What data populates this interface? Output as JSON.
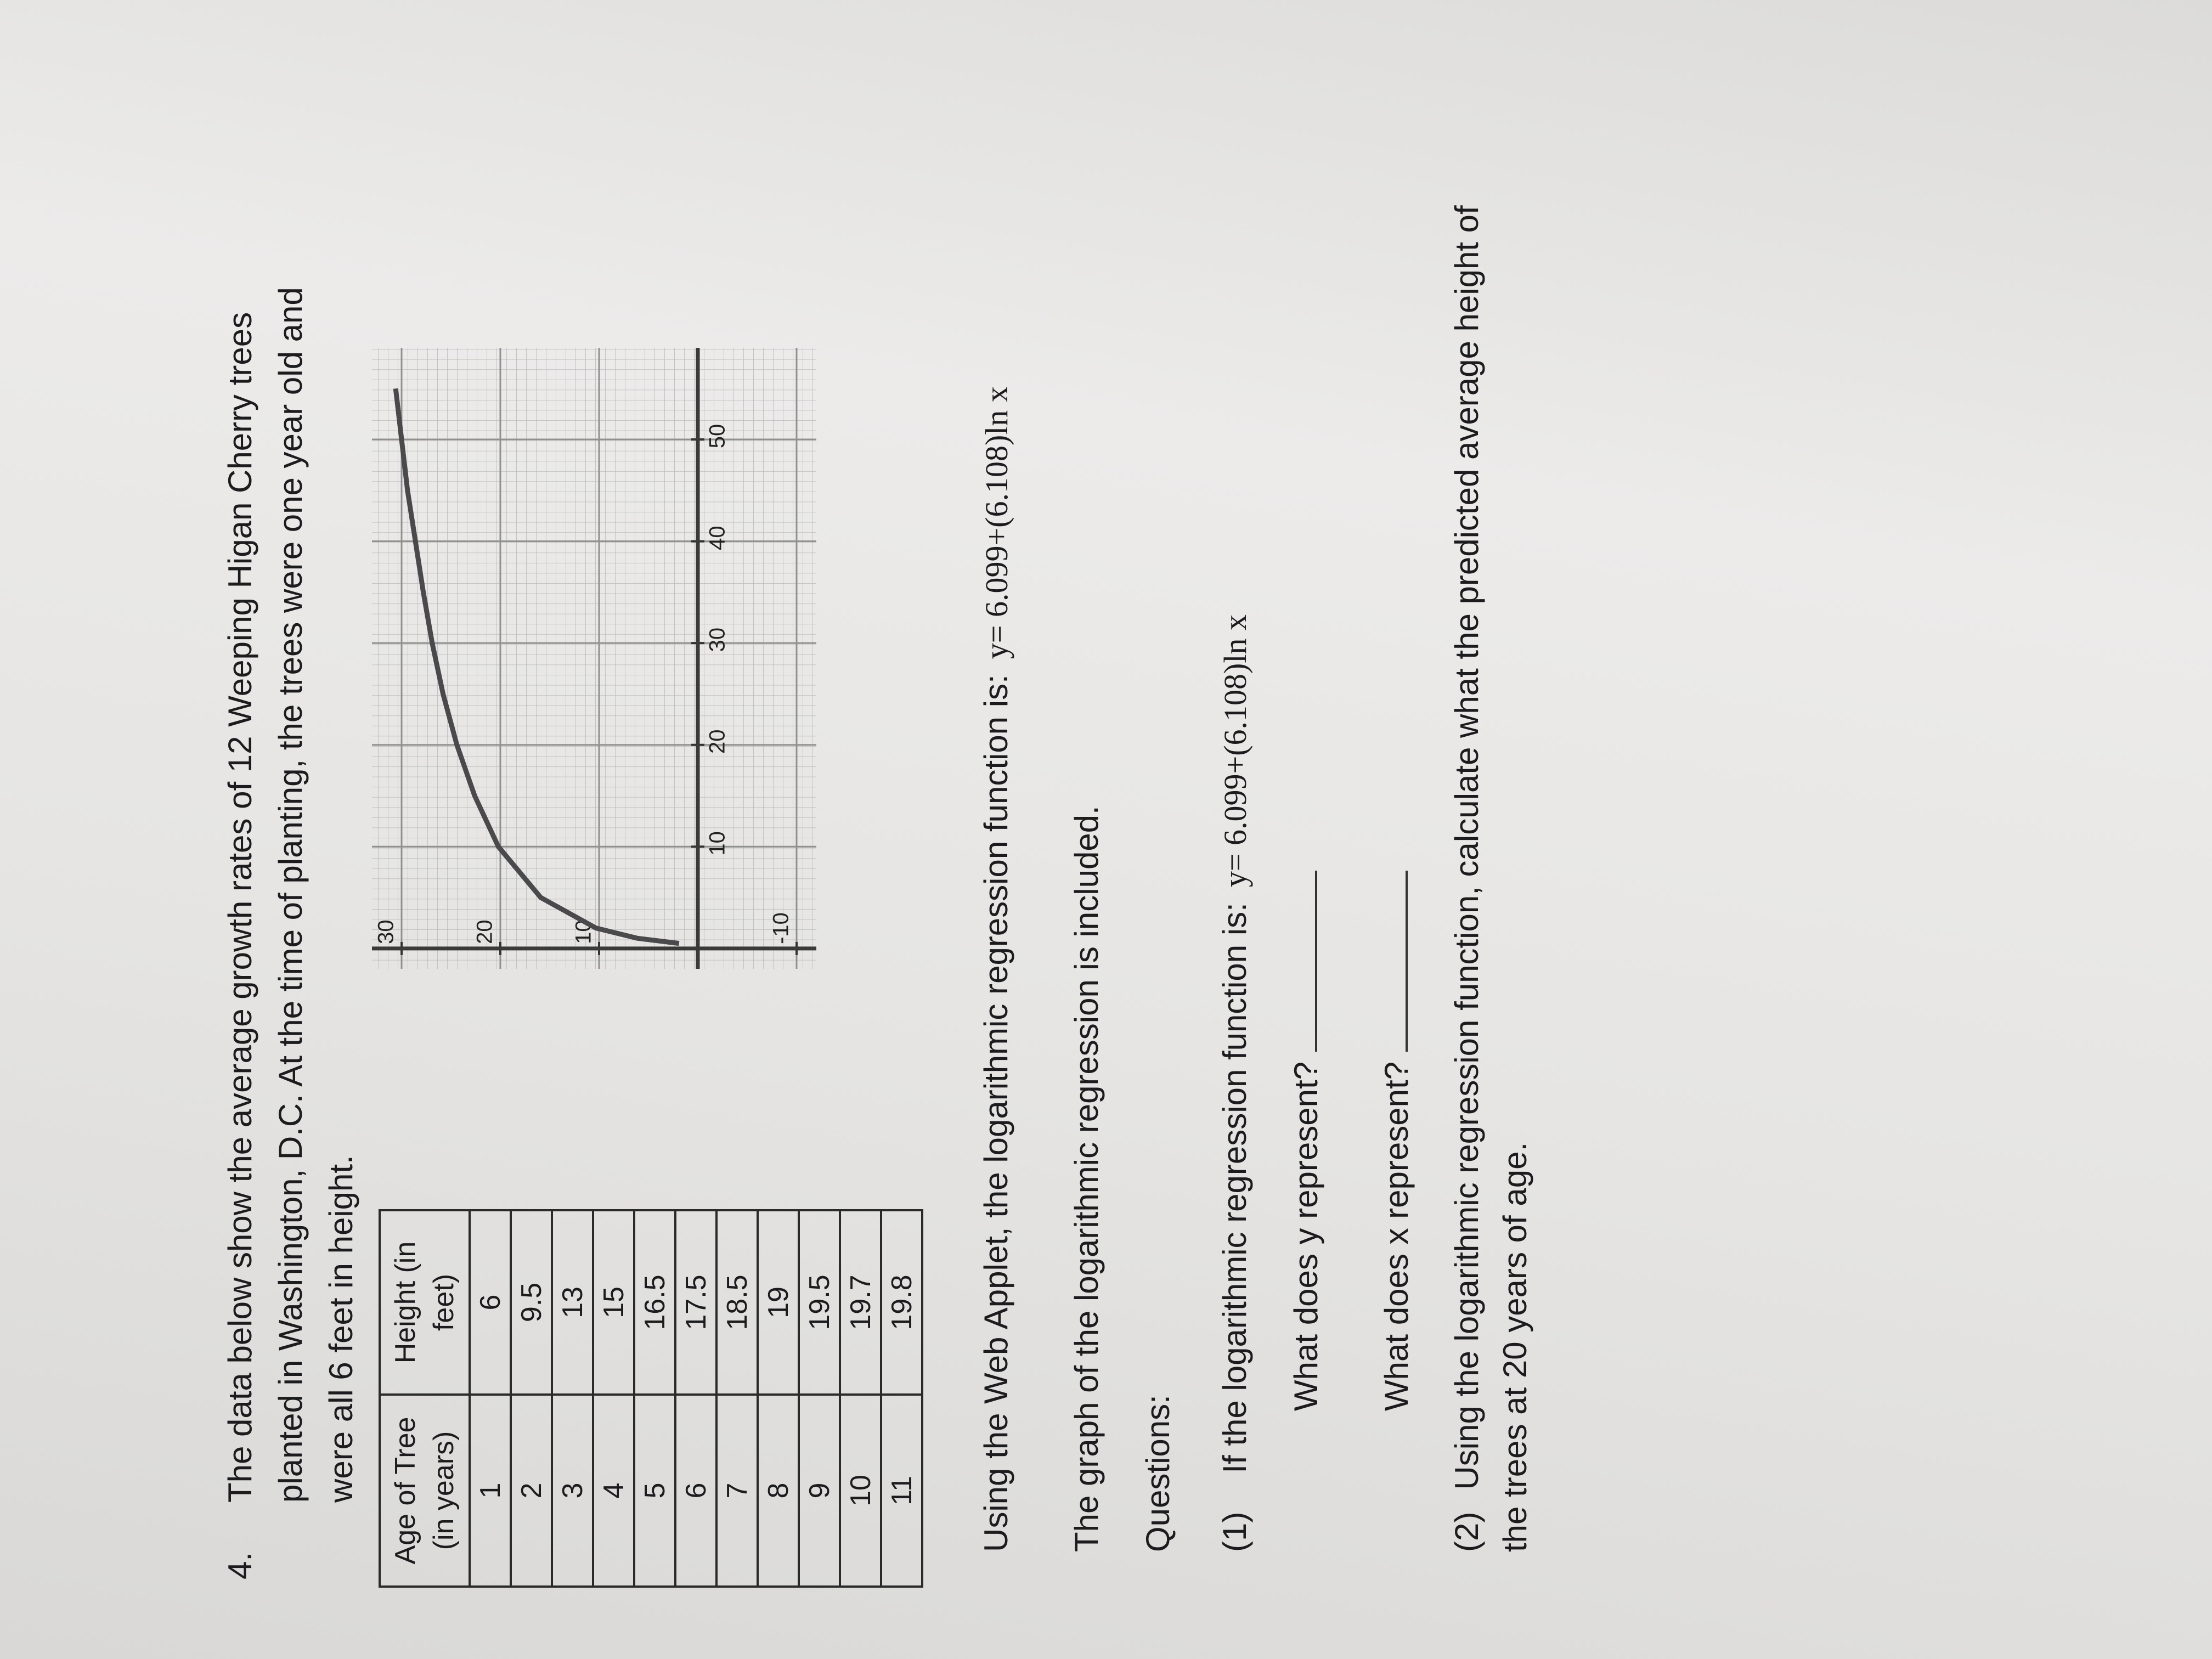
{
  "problem_number": "4.",
  "intro": "The data below show the average growth rates of 12 Weeping Higan Cherry trees planted in Washington, D.C.  At the time of planting, the trees were one year old and were all 6 feet in height.",
  "table": {
    "headers": [
      "Age of Tree (in years)",
      "Height (in feet)"
    ],
    "rows": [
      [
        1,
        6
      ],
      [
        2,
        9.5
      ],
      [
        3,
        13
      ],
      [
        4,
        15
      ],
      [
        5,
        16.5
      ],
      [
        6,
        17.5
      ],
      [
        7,
        18.5
      ],
      [
        8,
        19
      ],
      [
        9,
        19.5
      ],
      [
        10,
        19.7
      ],
      [
        11,
        19.8
      ]
    ]
  },
  "chart_data": {
    "type": "line",
    "x": [
      0.5,
      1,
      2,
      5,
      10,
      15,
      20,
      25,
      30,
      35,
      40,
      45,
      50,
      55
    ],
    "values": [
      1.9,
      6.1,
      10.3,
      15.9,
      20.2,
      22.6,
      24.4,
      25.8,
      26.9,
      27.8,
      28.6,
      29.4,
      30.0,
      30.6
    ],
    "color": "#4a4a4c",
    "xlim": [
      -2,
      59
    ],
    "ylim": [
      -12,
      33
    ],
    "xticks": [
      10,
      20,
      30,
      40,
      50
    ],
    "yticks": [
      -10,
      10,
      20,
      30
    ],
    "grid": true
  },
  "regression_text": "Using the Web Applet, the logarithmic regression function is:",
  "regression_equation": "y= 6.099+(6.108)ln x",
  "graph_note": "The graph of the logarithmic regression is included.",
  "questions_heading": "Questions:",
  "questions": [
    {
      "number": "(1)",
      "text": "If the logarithmic regression function is:",
      "equation": "y= 6.099+(6.108)ln x",
      "parts": [
        "What does y represent?",
        "What does x represent?"
      ]
    },
    {
      "number": "(2)",
      "text": "Using the logarithmic regression function, calculate what the predicted average height of the trees at 20 years of age."
    }
  ]
}
